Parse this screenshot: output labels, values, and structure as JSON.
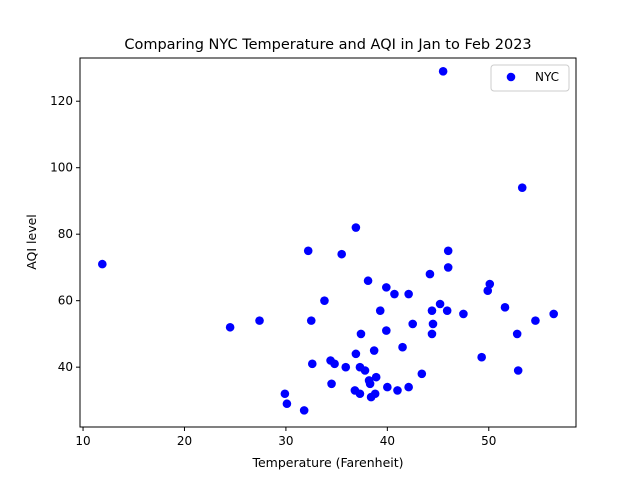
{
  "chart_data": {
    "type": "scatter",
    "title": "Comparing NYC Temperature and AQI in Jan to Feb 2023",
    "xlabel": "Temperature (Farenheit)",
    "ylabel": "AQI level",
    "xlim": [
      9.7,
      58.6
    ],
    "ylim": [
      22,
      133
    ],
    "xticks": [
      10,
      20,
      30,
      40,
      50
    ],
    "yticks": [
      40,
      60,
      80,
      100,
      120
    ],
    "grid": false,
    "legend_position": "top-right",
    "series": [
      {
        "name": "NYC",
        "color": "#0000ff",
        "points": [
          [
            11.9,
            71
          ],
          [
            24.5,
            52
          ],
          [
            27.4,
            54
          ],
          [
            29.9,
            32
          ],
          [
            30.1,
            29
          ],
          [
            31.8,
            27
          ],
          [
            32.2,
            75
          ],
          [
            32.5,
            54
          ],
          [
            32.6,
            41
          ],
          [
            33.8,
            60
          ],
          [
            34.4,
            42
          ],
          [
            34.5,
            35
          ],
          [
            34.8,
            41
          ],
          [
            35.5,
            74
          ],
          [
            35.9,
            40
          ],
          [
            36.8,
            33
          ],
          [
            36.9,
            82
          ],
          [
            36.9,
            44
          ],
          [
            37.3,
            40
          ],
          [
            37.3,
            32
          ],
          [
            37.4,
            50
          ],
          [
            37.8,
            39
          ],
          [
            38.1,
            66
          ],
          [
            38.2,
            36
          ],
          [
            38.3,
            35
          ],
          [
            38.4,
            31
          ],
          [
            38.7,
            45
          ],
          [
            38.8,
            32
          ],
          [
            38.9,
            37
          ],
          [
            39.3,
            57
          ],
          [
            39.9,
            64
          ],
          [
            39.9,
            51
          ],
          [
            40.0,
            34
          ],
          [
            40.7,
            62
          ],
          [
            41.0,
            33
          ],
          [
            41.5,
            46
          ],
          [
            42.1,
            34
          ],
          [
            42.1,
            62
          ],
          [
            42.5,
            53
          ],
          [
            43.4,
            38
          ],
          [
            44.2,
            68
          ],
          [
            44.4,
            57
          ],
          [
            44.4,
            50
          ],
          [
            44.5,
            53
          ],
          [
            45.2,
            59
          ],
          [
            45.5,
            129
          ],
          [
            45.9,
            57
          ],
          [
            46.0,
            75
          ],
          [
            46.0,
            70
          ],
          [
            47.5,
            56
          ],
          [
            49.3,
            43
          ],
          [
            49.9,
            63
          ],
          [
            50.1,
            65
          ],
          [
            51.6,
            58
          ],
          [
            52.8,
            50
          ],
          [
            52.9,
            39
          ],
          [
            53.3,
            94
          ],
          [
            54.6,
            54
          ],
          [
            56.4,
            56
          ]
        ]
      }
    ]
  }
}
